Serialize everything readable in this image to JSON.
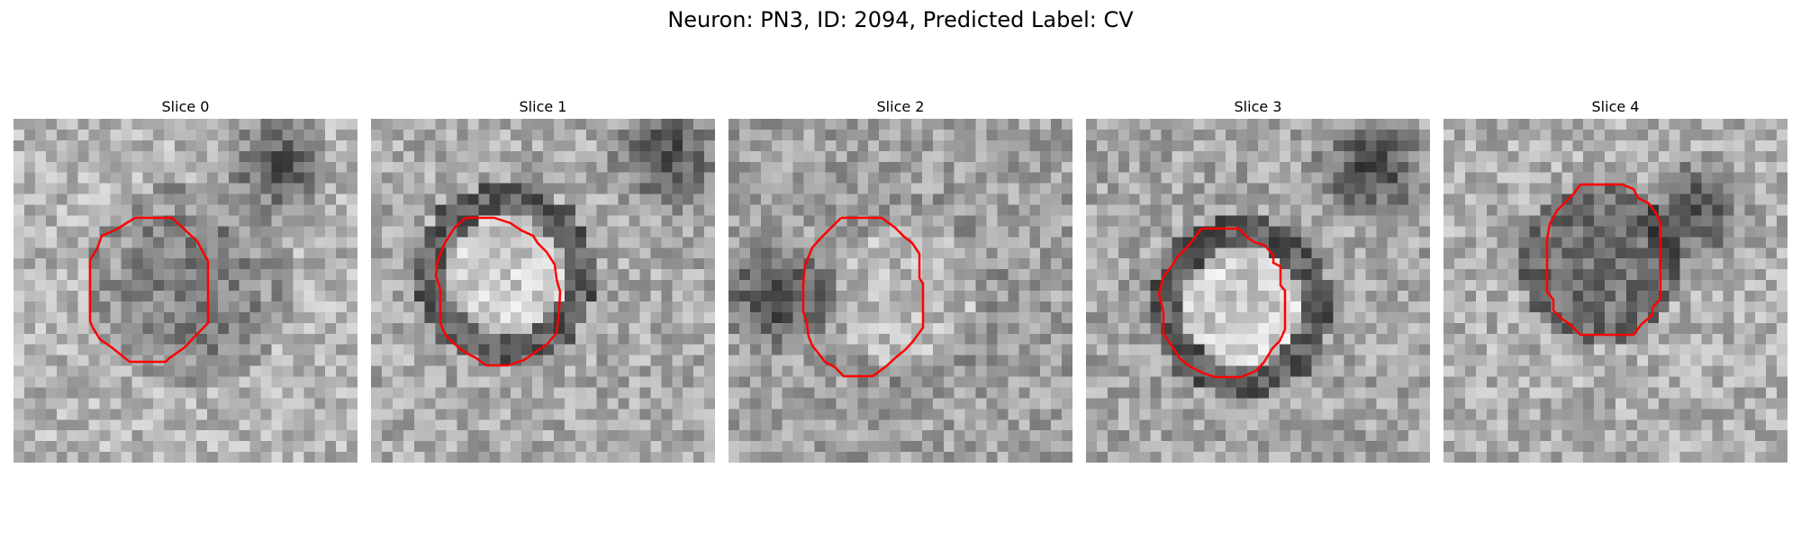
{
  "figure": {
    "title": "Neuron: PN3, ID: 2094, Predicted Label: CV",
    "contour_color": "#ff0000",
    "colormap": "gray",
    "panels": [
      {
        "title": "Slice 0"
      },
      {
        "title": "Slice 1"
      },
      {
        "title": "Slice 2"
      },
      {
        "title": "Slice 3"
      },
      {
        "title": "Slice 4"
      }
    ]
  }
}
